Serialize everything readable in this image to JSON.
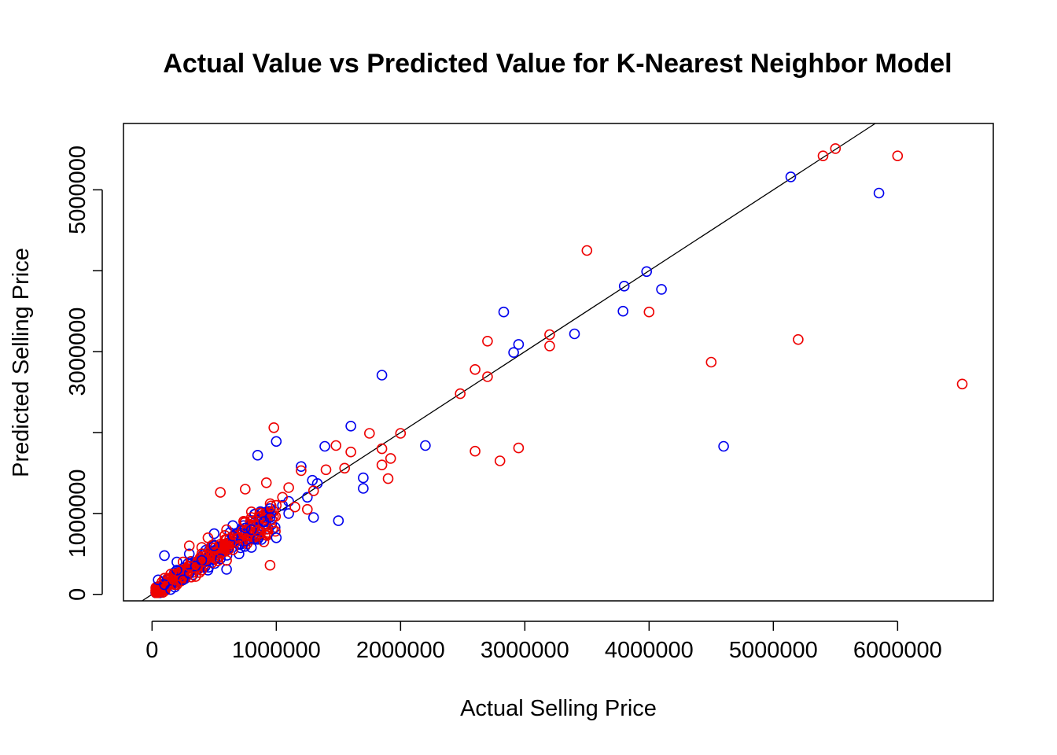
{
  "chart_data": {
    "type": "scatter",
    "title": "Actual Value vs Predicted Value for K-Nearest Neighbor Model",
    "xlabel": "Actual Selling Price",
    "ylabel": "Predicted Selling Price",
    "xlim": [
      -230000,
      6770000
    ],
    "ylim": [
      -80000,
      5820000
    ],
    "xticks": [
      0,
      1000000,
      2000000,
      3000000,
      4000000,
      5000000,
      6000000
    ],
    "xtick_labels": [
      "0",
      "1000000",
      "2000000",
      "3000000",
      "4000000",
      "5000000",
      "6000000"
    ],
    "yticks": [
      0,
      1000000,
      2000000,
      3000000,
      4000000,
      5000000
    ],
    "ytick_labels": [
      "0",
      "1000000",
      "",
      "3000000",
      "",
      "5000000"
    ],
    "grid": false,
    "reference_line": {
      "slope": 1,
      "intercept": 0,
      "color": "#000000"
    },
    "series": [
      {
        "color": "#0000ee",
        "points": [
          [
            5140000,
            5160000
          ],
          [
            5850000,
            4960000
          ],
          [
            3980000,
            3990000
          ],
          [
            3800000,
            3810000
          ],
          [
            4100000,
            3770000
          ],
          [
            3790000,
            3500000
          ],
          [
            2830000,
            3490000
          ],
          [
            3400000,
            3220000
          ],
          [
            2950000,
            3090000
          ],
          [
            2910000,
            2990000
          ],
          [
            1850000,
            2710000
          ],
          [
            4600000,
            1830000
          ],
          [
            2200000,
            1840000
          ],
          [
            1600000,
            2080000
          ],
          [
            1000000,
            1890000
          ],
          [
            1390000,
            1830000
          ],
          [
            850000,
            1720000
          ],
          [
            1200000,
            1580000
          ],
          [
            1700000,
            1440000
          ],
          [
            1700000,
            1310000
          ],
          [
            1290000,
            1410000
          ],
          [
            1500000,
            910000
          ],
          [
            1330000,
            1370000
          ],
          [
            1100000,
            1150000
          ],
          [
            900000,
            900000
          ],
          [
            650000,
            720000
          ],
          [
            500000,
            600000
          ],
          [
            100000,
            480000
          ],
          [
            50000,
            180000
          ],
          [
            200000,
            300000
          ],
          [
            350000,
            350000
          ],
          [
            700000,
            620000
          ],
          [
            800000,
            800000
          ],
          [
            950000,
            950000
          ],
          [
            600000,
            310000
          ],
          [
            150000,
            60000
          ],
          [
            250000,
            180000
          ],
          [
            400000,
            420000
          ],
          [
            750000,
            820000
          ],
          [
            1000000,
            700000
          ],
          [
            1250000,
            1200000
          ],
          [
            1300000,
            950000
          ],
          [
            1100000,
            1000000
          ],
          [
            950000,
            1060000
          ],
          [
            800000,
            580000
          ],
          [
            550000,
            440000
          ],
          [
            300000,
            260000
          ],
          [
            100000,
            120000
          ],
          [
            450000,
            300000
          ],
          [
            200000,
            400000
          ],
          [
            650000,
            850000
          ],
          [
            850000,
            680000
          ],
          [
            1050000,
            1100000
          ],
          [
            300000,
            500000
          ],
          [
            500000,
            750000
          ],
          [
            700000,
            500000
          ]
        ]
      },
      {
        "color": "#ee0000",
        "points": [
          [
            5400000,
            5420000
          ],
          [
            5500000,
            5510000
          ],
          [
            6000000,
            5420000
          ],
          [
            3500000,
            4250000
          ],
          [
            4000000,
            3490000
          ],
          [
            3200000,
            3210000
          ],
          [
            3200000,
            3070000
          ],
          [
            2700000,
            3130000
          ],
          [
            5200000,
            3150000
          ],
          [
            4500000,
            2870000
          ],
          [
            2600000,
            2780000
          ],
          [
            2700000,
            2690000
          ],
          [
            6520000,
            2600000
          ],
          [
            2480000,
            2480000
          ],
          [
            2000000,
            1990000
          ],
          [
            2600000,
            1770000
          ],
          [
            2800000,
            1650000
          ],
          [
            2950000,
            1810000
          ],
          [
            980000,
            2060000
          ],
          [
            1750000,
            1990000
          ],
          [
            1850000,
            1800000
          ],
          [
            1920000,
            1680000
          ],
          [
            1900000,
            1430000
          ],
          [
            1850000,
            1600000
          ],
          [
            1600000,
            1760000
          ],
          [
            1550000,
            1560000
          ],
          [
            1480000,
            1840000
          ],
          [
            1400000,
            1540000
          ],
          [
            1200000,
            1530000
          ],
          [
            1100000,
            1320000
          ],
          [
            920000,
            1380000
          ],
          [
            750000,
            1300000
          ],
          [
            550000,
            1260000
          ],
          [
            950000,
            360000
          ],
          [
            1300000,
            1280000
          ],
          [
            1000000,
            1100000
          ],
          [
            800000,
            950000
          ],
          [
            600000,
            800000
          ],
          [
            400000,
            580000
          ],
          [
            300000,
            600000
          ],
          [
            250000,
            400000
          ],
          [
            150000,
            250000
          ],
          [
            100000,
            200000
          ],
          [
            500000,
            450000
          ],
          [
            700000,
            700000
          ],
          [
            850000,
            780000
          ],
          [
            350000,
            220000
          ],
          [
            650000,
            550000
          ],
          [
            1150000,
            1080000
          ],
          [
            1050000,
            1200000
          ],
          [
            900000,
            650000
          ],
          [
            450000,
            700000
          ],
          [
            200000,
            120000
          ],
          [
            550000,
            620000
          ],
          [
            750000,
            900000
          ],
          [
            1250000,
            1050000
          ],
          [
            300000,
            350000
          ],
          [
            600000,
            420000
          ],
          [
            400000,
            300000
          ],
          [
            800000,
            1020000
          ]
        ]
      }
    ],
    "dense_cloud": {
      "x_range": [
        30000,
        1000000
      ],
      "y_scatter": 0.18,
      "count_per_series": 180
    }
  }
}
